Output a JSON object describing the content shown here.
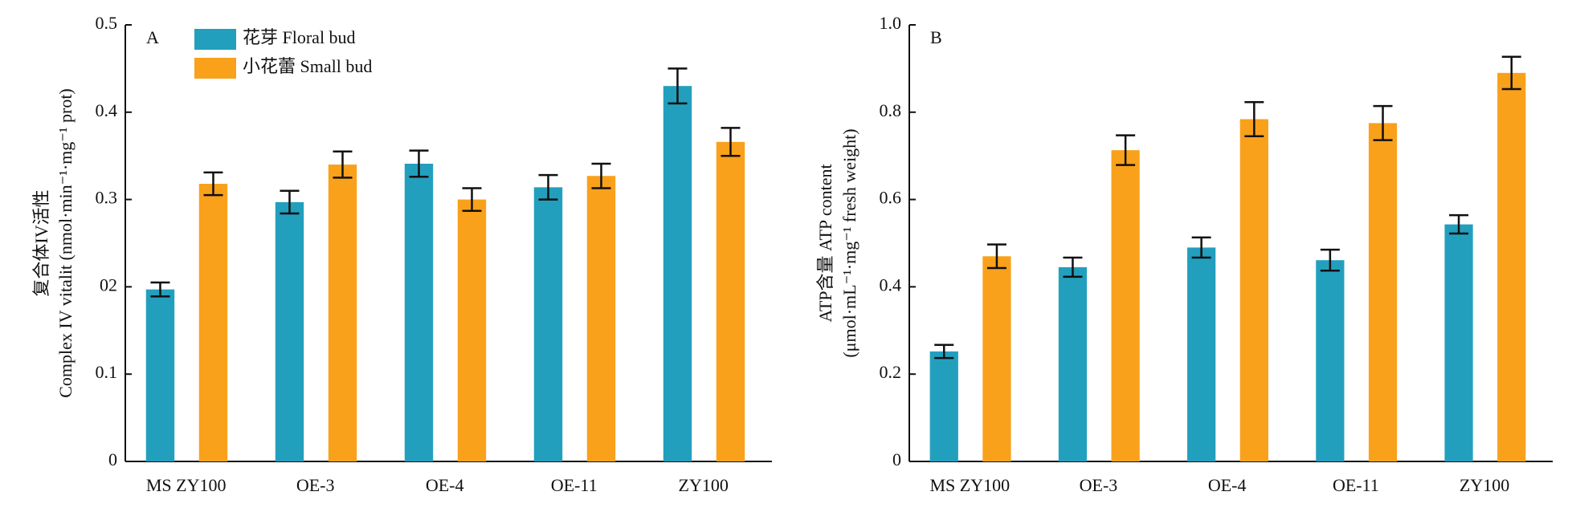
{
  "chart_data": [
    {
      "type": "bar",
      "annotation": "A",
      "ylabel": [
        "复合体IV活性",
        "Complex IV vitalit (nmol·min⁻¹·mg⁻¹ prot)"
      ],
      "categories": [
        "MS ZY100",
        "OE-3",
        "OE-4",
        "OE-11",
        "ZY100"
      ],
      "series": [
        {
          "name": "花芽 Floral bud",
          "color": "#239fbe",
          "values": [
            0.197,
            0.297,
            0.341,
            0.314,
            0.43
          ],
          "errors": [
            0.008,
            0.013,
            0.015,
            0.014,
            0.02
          ]
        },
        {
          "name": "小花蕾 Small bud",
          "color": "#f9a11b",
          "values": [
            0.318,
            0.34,
            0.3,
            0.327,
            0.366
          ],
          "errors": [
            0.013,
            0.015,
            0.013,
            0.014,
            0.016
          ]
        }
      ],
      "ylim": [
        0,
        0.5
      ],
      "yticks": [
        0,
        0.1,
        {
          "value": 0.2,
          "label": "02"
        },
        0.3,
        0.4,
        0.5
      ],
      "legend": "upper left"
    },
    {
      "type": "bar",
      "annotation": "B",
      "ylabel": [
        "ATP含量 ATP content",
        "(μmol·mL⁻¹·mg⁻¹ fresh weight)"
      ],
      "categories": [
        "MS ZY100",
        "OE-3",
        "OE-4",
        "OE-11",
        "ZY100"
      ],
      "series": [
        {
          "color": "#239fbe",
          "values": [
            0.252,
            0.445,
            0.49,
            0.461,
            0.543
          ],
          "errors": [
            0.015,
            0.022,
            0.023,
            0.024,
            0.021
          ]
        },
        {
          "color": "#f9a11b",
          "values": [
            0.47,
            0.713,
            0.784,
            0.775,
            0.89
          ],
          "errors": [
            0.027,
            0.034,
            0.039,
            0.039,
            0.037
          ]
        }
      ],
      "ylim": [
        0,
        1
      ],
      "yticks": [
        0,
        0.2,
        0.4,
        0.6,
        0.8,
        {
          "value": 1,
          "label": "1.0"
        }
      ]
    }
  ]
}
